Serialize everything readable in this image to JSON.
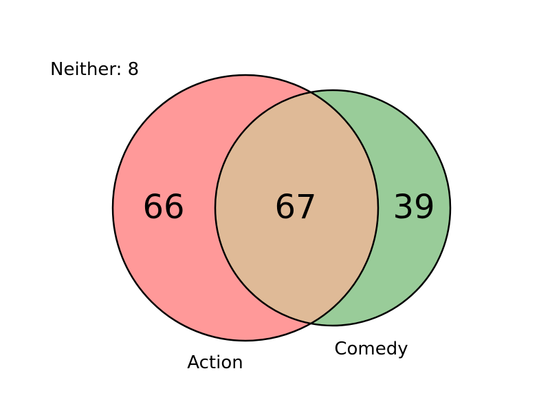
{
  "diagram": {
    "type": "venn2",
    "neither": {
      "label": "Neither:",
      "count": "8"
    },
    "sets": [
      {
        "name": "Action",
        "only_count": "66",
        "color": "#ff9999"
      },
      {
        "name": "Comedy",
        "only_count": "39",
        "color": "#99cc99"
      }
    ],
    "intersection": {
      "count": "67",
      "color": "#dfba97"
    }
  }
}
